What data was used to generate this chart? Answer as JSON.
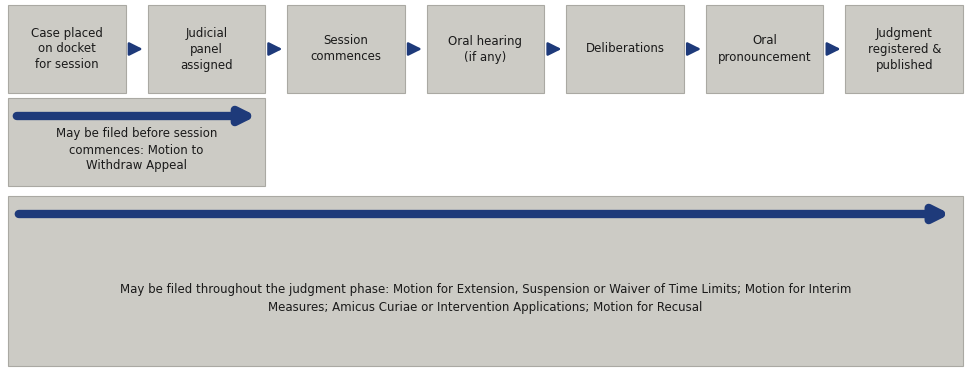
{
  "bg_color": "#ffffff",
  "panel_fill": "#cccbc5",
  "panel_edge": "#aaa9a3",
  "arrow_color": "#1e3a7a",
  "top_boxes": [
    "Case placed\non docket\nfor session",
    "Judicial\npanel\nassigned",
    "Session\ncommences",
    "Oral hearing\n(if any)",
    "Deliberations",
    "Oral\npronouncement",
    "Judgment\nregistered &\npublished"
  ],
  "mid_box_text": "May be filed before session\ncommences: Motion to\nWithdraw Appeal",
  "bottom_text": "May be filed throughout the judgment phase: Motion for Extension, Suspension or Waiver of Time Limits; Motion for Interim\nMeasures; Amicus Curiae or Intervention Applications; Motion for Recusal",
  "font_size_boxes": 8.5,
  "font_size_bottom": 8.5,
  "text_color": "#1a1a1a",
  "fig_w": 9.71,
  "fig_h": 3.71,
  "dpi": 100
}
